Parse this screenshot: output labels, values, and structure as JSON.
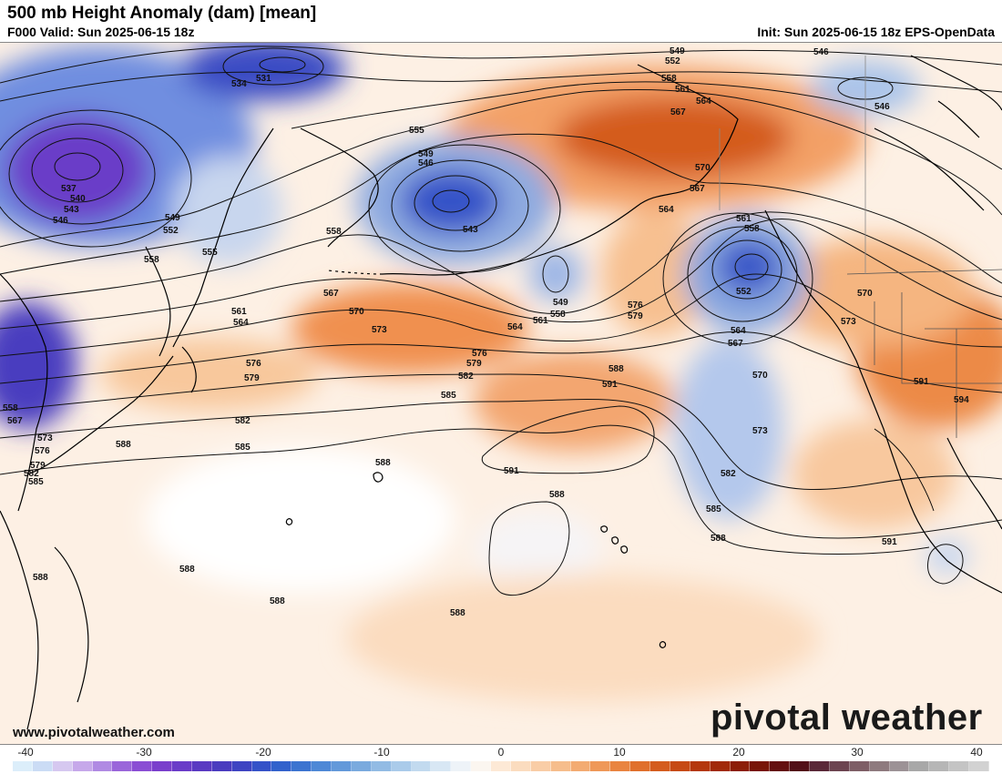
{
  "header": {
    "title": "500 mb Height Anomaly (dam) [mean]",
    "valid": "F000 Valid: Sun 2025-06-15 18z",
    "init": "Init: Sun 2025-06-15 18z EPS-OpenData"
  },
  "footer": {
    "website": "www.pivotalweather.com",
    "brand": "pivotal weather"
  },
  "colorbar": {
    "ticks": [
      "-40",
      "-30",
      "-20",
      "-10",
      "0",
      "10",
      "20",
      "30",
      "40"
    ],
    "colors": [
      "#dceefa",
      "#cbdcf5",
      "#d6c8f0",
      "#c6a8ea",
      "#b08ae3",
      "#9a66da",
      "#8a4ed4",
      "#7a3fcc",
      "#6a3cc8",
      "#5a3ac2",
      "#4a3cbf",
      "#3e44c2",
      "#3552c8",
      "#3262cc",
      "#3c74d0",
      "#4e88d6",
      "#6399da",
      "#7aaade",
      "#92bbe4",
      "#aacbea",
      "#c2daef",
      "#d8e7f4",
      "#eef3f8",
      "#fbf6f0",
      "#fde9d6",
      "#fbdcbf",
      "#f9cda6",
      "#f6bd8c",
      "#f3ab72",
      "#ef9858",
      "#e98440",
      "#e0702c",
      "#d45c1e",
      "#c64a14",
      "#b4380e",
      "#a12a0a",
      "#8c1e08",
      "#781608",
      "#641010",
      "#521018",
      "#5a2838",
      "#6c4450",
      "#7e5e66",
      "#8e7a7e",
      "#9c9296",
      "#a8a8a8",
      "#b6b6b6",
      "#c4c4c4",
      "#d2d2d2"
    ]
  },
  "contours": [
    {
      "label": "549"
    },
    {
      "label": "552"
    },
    {
      "label": "546"
    },
    {
      "label": "558"
    },
    {
      "label": "561"
    },
    {
      "label": "564"
    },
    {
      "label": "567"
    },
    {
      "label": "546"
    },
    {
      "label": "531"
    },
    {
      "label": "534"
    },
    {
      "label": "555"
    },
    {
      "label": "549"
    },
    {
      "label": "546"
    },
    {
      "label": "543"
    },
    {
      "label": "570"
    },
    {
      "label": "567"
    },
    {
      "label": "564"
    },
    {
      "label": "537"
    },
    {
      "label": "540"
    },
    {
      "label": "543"
    },
    {
      "label": "546"
    },
    {
      "label": "549"
    },
    {
      "label": "552"
    },
    {
      "label": "558"
    },
    {
      "label": "555"
    },
    {
      "label": "558"
    },
    {
      "label": "561"
    },
    {
      "label": "558"
    },
    {
      "label": "552"
    },
    {
      "label": "567"
    },
    {
      "label": "570"
    },
    {
      "label": "573"
    },
    {
      "label": "549"
    },
    {
      "label": "570"
    },
    {
      "label": "573"
    },
    {
      "label": "561"
    },
    {
      "label": "564"
    },
    {
      "label": "561"
    },
    {
      "label": "558"
    },
    {
      "label": "564"
    },
    {
      "label": "564"
    },
    {
      "label": "567"
    },
    {
      "label": "576"
    },
    {
      "label": "579"
    },
    {
      "label": "582"
    },
    {
      "label": "576"
    },
    {
      "label": "579"
    },
    {
      "label": "588"
    },
    {
      "label": "591"
    },
    {
      "label": "585"
    },
    {
      "label": "576"
    },
    {
      "label": "579"
    },
    {
      "label": "582"
    },
    {
      "label": "585"
    },
    {
      "label": "588"
    },
    {
      "label": "582"
    },
    {
      "label": "585"
    },
    {
      "label": "570"
    },
    {
      "label": "573"
    },
    {
      "label": "591"
    },
    {
      "label": "594"
    },
    {
      "label": "558"
    },
    {
      "label": "567"
    },
    {
      "label": "573"
    },
    {
      "label": "576"
    },
    {
      "label": "579"
    },
    {
      "label": "582"
    },
    {
      "label": "585"
    },
    {
      "label": "588"
    },
    {
      "label": "591"
    },
    {
      "label": "588"
    },
    {
      "label": "588"
    },
    {
      "label": "588"
    },
    {
      "label": "588"
    },
    {
      "label": "588"
    },
    {
      "label": "588"
    },
    {
      "label": "591"
    }
  ]
}
